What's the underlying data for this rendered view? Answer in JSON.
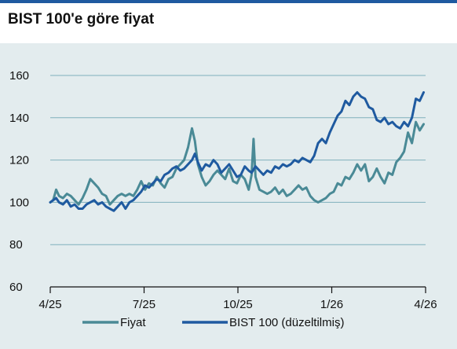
{
  "page": {
    "title": "BIST 100'e göre fiyat"
  },
  "chart_data": {
    "type": "line",
    "title": "BIST 100'e göre fiyat",
    "xlabel": "",
    "ylabel": "",
    "ylim": [
      60,
      160
    ],
    "yticks": [
      60,
      80,
      100,
      120,
      140,
      160
    ],
    "xticks": [
      "4/25",
      "7/25",
      "10/25",
      "1/26",
      "4/26"
    ],
    "xlim": [
      "2025-04-01",
      "2026-04-20"
    ],
    "grid": true,
    "legend": "bottom",
    "series": [
      {
        "name": "Fiyat",
        "color": "#4a8a96",
        "points": [
          [
            "2025-04-01",
            100
          ],
          [
            "2025-04-04",
            101
          ],
          [
            "2025-04-07",
            106
          ],
          [
            "2025-04-10",
            103
          ],
          [
            "2025-04-14",
            102
          ],
          [
            "2025-04-18",
            104
          ],
          [
            "2025-04-22",
            103
          ],
          [
            "2025-04-26",
            101
          ],
          [
            "2025-04-30",
            99
          ],
          [
            "2025-05-04",
            102
          ],
          [
            "2025-05-08",
            106
          ],
          [
            "2025-05-12",
            111
          ],
          [
            "2025-05-16",
            109
          ],
          [
            "2025-05-20",
            107
          ],
          [
            "2025-05-24",
            104
          ],
          [
            "2025-05-28",
            103
          ],
          [
            "2025-06-01",
            99
          ],
          [
            "2025-06-05",
            101
          ],
          [
            "2025-06-09",
            103
          ],
          [
            "2025-06-13",
            104
          ],
          [
            "2025-06-17",
            103
          ],
          [
            "2025-06-21",
            104
          ],
          [
            "2025-06-25",
            103
          ],
          [
            "2025-06-29",
            106
          ],
          [
            "2025-07-03",
            110
          ],
          [
            "2025-07-07",
            106
          ],
          [
            "2025-07-11",
            109
          ],
          [
            "2025-07-15",
            108
          ],
          [
            "2025-07-19",
            112
          ],
          [
            "2025-07-23",
            109
          ],
          [
            "2025-07-27",
            107
          ],
          [
            "2025-07-31",
            111
          ],
          [
            "2025-08-04",
            112
          ],
          [
            "2025-08-08",
            116
          ],
          [
            "2025-08-12",
            118
          ],
          [
            "2025-08-16",
            120
          ],
          [
            "2025-08-20",
            126
          ],
          [
            "2025-08-24",
            135
          ],
          [
            "2025-08-27",
            129
          ],
          [
            "2025-08-30",
            118
          ],
          [
            "2025-09-03",
            112
          ],
          [
            "2025-09-07",
            108
          ],
          [
            "2025-09-11",
            110
          ],
          [
            "2025-09-15",
            113
          ],
          [
            "2025-09-19",
            115
          ],
          [
            "2025-09-23",
            113
          ],
          [
            "2025-09-27",
            111
          ],
          [
            "2025-10-01",
            116
          ],
          [
            "2025-10-05",
            110
          ],
          [
            "2025-10-09",
            109
          ],
          [
            "2025-10-13",
            113
          ],
          [
            "2025-10-17",
            111
          ],
          [
            "2025-10-21",
            106
          ],
          [
            "2025-10-24",
            113
          ],
          [
            "2025-10-26",
            130
          ],
          [
            "2025-10-28",
            112
          ],
          [
            "2025-11-01",
            106
          ],
          [
            "2025-11-05",
            105
          ],
          [
            "2025-11-09",
            104
          ],
          [
            "2025-11-13",
            105
          ],
          [
            "2025-11-17",
            107
          ],
          [
            "2025-11-21",
            104
          ],
          [
            "2025-11-25",
            106
          ],
          [
            "2025-11-29",
            103
          ],
          [
            "2025-12-03",
            104
          ],
          [
            "2025-12-07",
            106
          ],
          [
            "2025-12-11",
            108
          ],
          [
            "2025-12-15",
            106
          ],
          [
            "2025-12-19",
            107
          ],
          [
            "2025-12-23",
            103
          ],
          [
            "2025-12-27",
            101
          ],
          [
            "2025-12-31",
            100
          ],
          [
            "2026-01-04",
            101
          ],
          [
            "2026-01-08",
            102
          ],
          [
            "2026-01-12",
            104
          ],
          [
            "2026-01-16",
            105
          ],
          [
            "2026-01-20",
            109
          ],
          [
            "2026-01-24",
            108
          ],
          [
            "2026-01-28",
            112
          ],
          [
            "2026-02-01",
            111
          ],
          [
            "2026-02-05",
            114
          ],
          [
            "2026-02-09",
            118
          ],
          [
            "2026-02-13",
            115
          ],
          [
            "2026-02-17",
            118
          ],
          [
            "2026-02-21",
            110
          ],
          [
            "2026-02-25",
            112
          ],
          [
            "2026-03-01",
            116
          ],
          [
            "2026-03-05",
            112
          ],
          [
            "2026-03-09",
            109
          ],
          [
            "2026-03-13",
            114
          ],
          [
            "2026-03-17",
            113
          ],
          [
            "2026-03-21",
            119
          ],
          [
            "2026-03-25",
            121
          ],
          [
            "2026-03-29",
            124
          ],
          [
            "2026-04-02",
            133
          ],
          [
            "2026-04-06",
            128
          ],
          [
            "2026-04-10",
            138
          ],
          [
            "2026-04-14",
            134
          ],
          [
            "2026-04-18",
            137
          ]
        ]
      },
      {
        "name": "BIST 100 (düzeltilmiş)",
        "color": "#1f5aa0",
        "points": [
          [
            "2025-04-01",
            100
          ],
          [
            "2025-04-04",
            101
          ],
          [
            "2025-04-07",
            102
          ],
          [
            "2025-04-10",
            100
          ],
          [
            "2025-04-14",
            99
          ],
          [
            "2025-04-18",
            101
          ],
          [
            "2025-04-22",
            98
          ],
          [
            "2025-04-26",
            99
          ],
          [
            "2025-04-30",
            97
          ],
          [
            "2025-05-04",
            97
          ],
          [
            "2025-05-08",
            99
          ],
          [
            "2025-05-12",
            100
          ],
          [
            "2025-05-16",
            101
          ],
          [
            "2025-05-20",
            99
          ],
          [
            "2025-05-24",
            100
          ],
          [
            "2025-05-28",
            98
          ],
          [
            "2025-06-01",
            97
          ],
          [
            "2025-06-05",
            96
          ],
          [
            "2025-06-09",
            98
          ],
          [
            "2025-06-13",
            100
          ],
          [
            "2025-06-17",
            97
          ],
          [
            "2025-06-21",
            100
          ],
          [
            "2025-06-25",
            101
          ],
          [
            "2025-06-29",
            103
          ],
          [
            "2025-07-03",
            105
          ],
          [
            "2025-07-07",
            108
          ],
          [
            "2025-07-11",
            107
          ],
          [
            "2025-07-15",
            109
          ],
          [
            "2025-07-19",
            111
          ],
          [
            "2025-07-23",
            110
          ],
          [
            "2025-07-27",
            113
          ],
          [
            "2025-07-31",
            114
          ],
          [
            "2025-08-04",
            116
          ],
          [
            "2025-08-08",
            117
          ],
          [
            "2025-08-12",
            115
          ],
          [
            "2025-08-16",
            116
          ],
          [
            "2025-08-20",
            118
          ],
          [
            "2025-08-24",
            120
          ],
          [
            "2025-08-27",
            123
          ],
          [
            "2025-08-30",
            119
          ],
          [
            "2025-09-03",
            115
          ],
          [
            "2025-09-07",
            118
          ],
          [
            "2025-09-11",
            117
          ],
          [
            "2025-09-15",
            120
          ],
          [
            "2025-09-19",
            118
          ],
          [
            "2025-09-23",
            114
          ],
          [
            "2025-09-27",
            116
          ],
          [
            "2025-10-01",
            118
          ],
          [
            "2025-10-05",
            115
          ],
          [
            "2025-10-09",
            112
          ],
          [
            "2025-10-13",
            113
          ],
          [
            "2025-10-17",
            117
          ],
          [
            "2025-10-21",
            115
          ],
          [
            "2025-10-24",
            114
          ],
          [
            "2025-10-28",
            117
          ],
          [
            "2025-11-01",
            115
          ],
          [
            "2025-11-05",
            113
          ],
          [
            "2025-11-09",
            115
          ],
          [
            "2025-11-13",
            114
          ],
          [
            "2025-11-17",
            117
          ],
          [
            "2025-11-21",
            116
          ],
          [
            "2025-11-25",
            118
          ],
          [
            "2025-11-29",
            117
          ],
          [
            "2025-12-03",
            118
          ],
          [
            "2025-12-07",
            120
          ],
          [
            "2025-12-11",
            119
          ],
          [
            "2025-12-15",
            121
          ],
          [
            "2025-12-19",
            120
          ],
          [
            "2025-12-23",
            119
          ],
          [
            "2025-12-27",
            122
          ],
          [
            "2025-12-31",
            128
          ],
          [
            "2026-01-04",
            130
          ],
          [
            "2026-01-08",
            128
          ],
          [
            "2026-01-12",
            133
          ],
          [
            "2026-01-16",
            137
          ],
          [
            "2026-01-20",
            141
          ],
          [
            "2026-01-24",
            143
          ],
          [
            "2026-01-28",
            148
          ],
          [
            "2026-02-01",
            146
          ],
          [
            "2026-02-05",
            150
          ],
          [
            "2026-02-09",
            152
          ],
          [
            "2026-02-13",
            150
          ],
          [
            "2026-02-17",
            149
          ],
          [
            "2026-02-21",
            145
          ],
          [
            "2026-02-25",
            144
          ],
          [
            "2026-03-01",
            139
          ],
          [
            "2026-03-05",
            138
          ],
          [
            "2026-03-09",
            140
          ],
          [
            "2026-03-13",
            137
          ],
          [
            "2026-03-17",
            138
          ],
          [
            "2026-03-21",
            136
          ],
          [
            "2026-03-25",
            135
          ],
          [
            "2026-03-29",
            138
          ],
          [
            "2026-04-02",
            136
          ],
          [
            "2026-04-06",
            140
          ],
          [
            "2026-04-10",
            149
          ],
          [
            "2026-04-14",
            148
          ],
          [
            "2026-04-18",
            152
          ]
        ]
      }
    ]
  }
}
